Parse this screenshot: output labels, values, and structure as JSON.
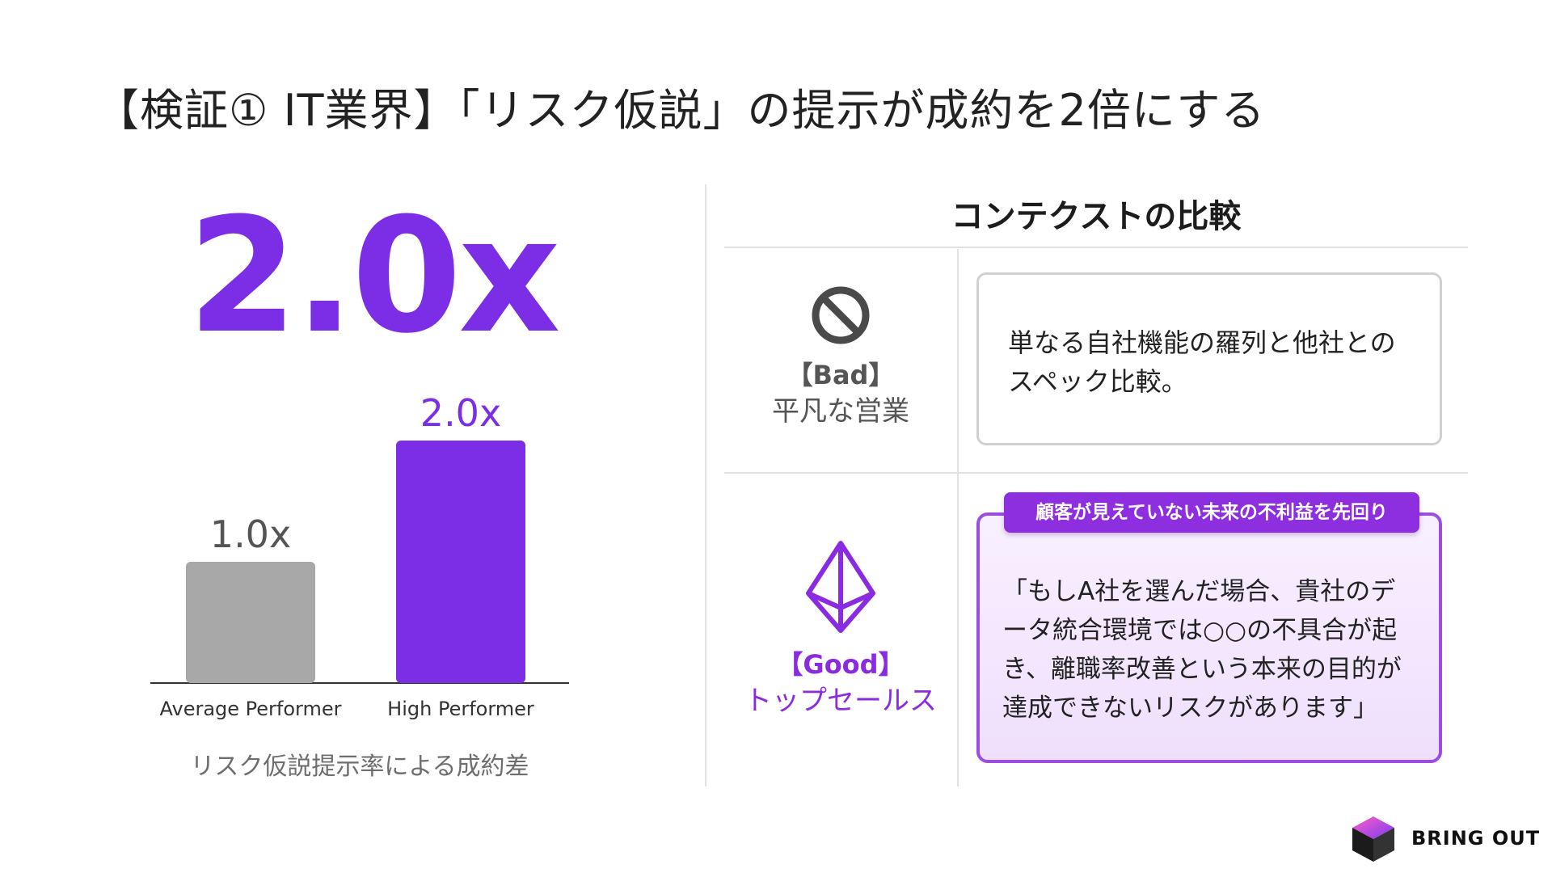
{
  "title": "【検証① IT業界】「リスク仮説」の提示が成約を2倍にする",
  "left": {
    "big_value": "2.0x",
    "caption": "リスク仮説提示率による成約差"
  },
  "chart_data": {
    "type": "bar",
    "categories": [
      "Average Performer",
      "High Performer"
    ],
    "values": [
      1.0,
      2.0
    ],
    "data_labels": [
      "1.0x",
      "2.0x"
    ],
    "colors": [
      "#a8a8a8",
      "#7b2ee6"
    ],
    "label_colors": [
      "#555555",
      "#7b2ee6"
    ],
    "ylim": [
      0,
      2.0
    ],
    "grid": false,
    "legend": "none"
  },
  "right": {
    "section_title": "コンテクストの比較",
    "bad": {
      "icon": "prohibited-icon",
      "tag": "【Bad】",
      "label": "平凡な営業",
      "text": "単なる自社機能の羅列と他社とのスペック比較。"
    },
    "good": {
      "icon": "ethereum-diamond-icon",
      "badge": "顧客が見えていない未来の不利益を先回り",
      "tag": "【Good】",
      "label": "トップセールス",
      "text": "「もしA社を選んだ場合、貴社のデータ統合環境では○○の不具合が起き、離職率改善という本来の目的が達成できないリスクがあります」"
    },
    "accent_color": "#8a2be2"
  },
  "brand": {
    "name": "BRING OUT",
    "logo_icon": "cube-logo-icon"
  }
}
